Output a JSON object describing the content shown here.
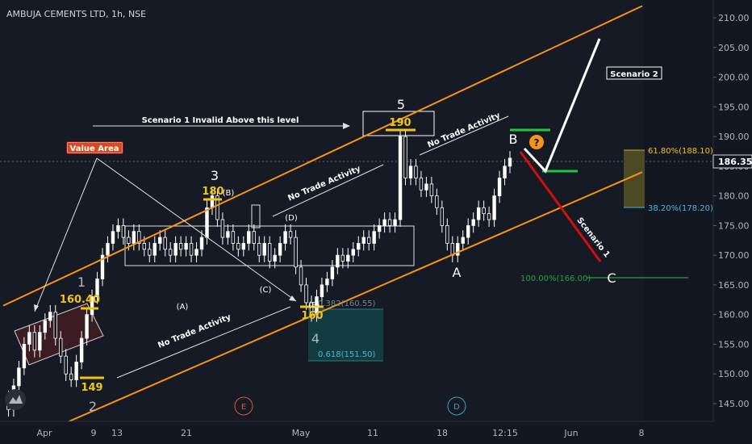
{
  "window": {
    "title": "AMBUJA CEMENTS LTD, 1h, NSE"
  },
  "colors": {
    "background": "#131722",
    "channel": "#f7931a",
    "candle": "#ffffff",
    "fib_label": "#f0c419",
    "fib_lower_label": "#4db6d3",
    "green_level": "#22c53e",
    "red_arrow": "#d10f0f",
    "white_arrow": "#ffffff",
    "value_area_fill": "#3a1c22",
    "teal_box_fill": "#123c3f"
  },
  "price_axis": {
    "ticks": [
      "210.00",
      "205.00",
      "200.00",
      "195.00",
      "190.00",
      "185.00",
      "180.00",
      "175.00",
      "170.00",
      "165.00",
      "160.00",
      "155.00",
      "150.00",
      "145.00"
    ],
    "current_price": "186.35"
  },
  "time_axis": {
    "ticks": [
      "Apr",
      "9",
      "13",
      "21",
      "May",
      "11",
      "18",
      "12:15",
      "Jun",
      "8"
    ]
  },
  "annotations": {
    "value_area": "Value Area",
    "scenario1_invalid": "Scenario 1 Invalid Above this level",
    "scenario2": "Scenario 2",
    "scenario1": "Scenario 1",
    "no_trade_1": "No Trade Activity",
    "no_trade_2": "No Trade Activity",
    "no_trade_3": "No Trade Activity",
    "question_mark": "?",
    "wave_1": "1",
    "wave_2": "2",
    "wave_3": "3",
    "wave_4": "4",
    "wave_5": "5",
    "wave_A": "A",
    "wave_B": "B",
    "wave_C": "C",
    "sub_A": "(A)",
    "sub_B": "(B)",
    "sub_C": "(C)",
    "sub_D": "(D)",
    "sub_E": "(E)",
    "circle_E": "E",
    "circle_D": "D",
    "price_1": "160.40",
    "price_2": "149",
    "price_3": "180",
    "price_4": "160",
    "price_5": "190",
    "fib_618": "61.80%(188.10)",
    "fib_382_upper": "38.20%(178.20)",
    "fib_100": "100.00%(166.00)",
    "fib_0382": "0.382(160.55)",
    "fib_0618": "0.618(151.50)"
  },
  "chart_data": {
    "type": "candlestick",
    "title": "AMBUJA CEMENTS LTD, 1h, NSE",
    "ylim": [
      142,
      213
    ],
    "y_ticks": [
      145,
      150,
      155,
      160,
      165,
      170,
      175,
      180,
      185,
      190,
      195,
      200,
      205,
      210
    ],
    "x_ticks": [
      "Apr",
      "9",
      "13",
      "21",
      "May",
      "11",
      "18",
      "12:15",
      "Jun",
      "8"
    ],
    "last_price": 186.35,
    "price_path": [
      [
        0,
        146
      ],
      [
        3,
        144
      ],
      [
        5,
        148
      ],
      [
        7,
        151
      ],
      [
        8,
        155
      ],
      [
        9,
        157
      ],
      [
        10,
        154
      ],
      [
        11,
        157
      ],
      [
        12,
        159
      ],
      [
        13,
        160.4
      ],
      [
        14,
        156
      ],
      [
        15,
        153
      ],
      [
        16,
        150
      ],
      [
        17,
        149
      ],
      [
        18,
        152
      ],
      [
        19,
        156
      ],
      [
        20,
        160
      ],
      [
        21,
        163
      ],
      [
        22,
        166
      ],
      [
        23,
        170
      ],
      [
        24,
        172
      ],
      [
        25,
        174
      ],
      [
        26,
        175
      ],
      [
        27,
        173
      ],
      [
        28,
        172
      ],
      [
        29,
        174
      ],
      [
        30,
        172
      ],
      [
        31,
        171
      ],
      [
        32,
        170
      ],
      [
        33,
        172
      ],
      [
        34,
        173
      ],
      [
        35,
        171
      ],
      [
        36,
        170
      ],
      [
        37,
        172
      ],
      [
        38,
        171
      ],
      [
        39,
        172
      ],
      [
        40,
        170
      ],
      [
        41,
        171
      ],
      [
        42,
        173
      ],
      [
        43,
        178
      ],
      [
        44,
        180
      ],
      [
        45,
        176
      ],
      [
        46,
        173
      ],
      [
        47,
        174
      ],
      [
        48,
        172
      ],
      [
        49,
        171
      ],
      [
        50,
        172
      ],
      [
        51,
        174
      ],
      [
        52,
        172
      ],
      [
        53,
        170
      ],
      [
        54,
        172
      ],
      [
        55,
        169
      ],
      [
        56,
        170
      ],
      [
        57,
        172
      ],
      [
        58,
        174
      ],
      [
        59,
        173
      ],
      [
        60,
        168
      ],
      [
        61,
        165
      ],
      [
        62,
        162
      ],
      [
        63,
        160
      ],
      [
        64,
        163
      ],
      [
        65,
        165
      ],
      [
        66,
        166
      ],
      [
        67,
        168
      ],
      [
        68,
        170
      ],
      [
        69,
        169
      ],
      [
        70,
        170
      ],
      [
        71,
        171
      ],
      [
        72,
        172
      ],
      [
        73,
        173
      ],
      [
        74,
        172
      ],
      [
        75,
        174
      ],
      [
        76,
        175
      ],
      [
        77,
        176
      ],
      [
        78,
        175
      ],
      [
        79,
        176
      ],
      [
        80,
        190
      ],
      [
        81,
        183
      ],
      [
        82,
        185
      ],
      [
        83,
        183
      ],
      [
        84,
        181
      ],
      [
        85,
        182
      ],
      [
        86,
        180
      ],
      [
        87,
        178
      ],
      [
        88,
        175
      ],
      [
        89,
        172
      ],
      [
        90,
        170
      ],
      [
        91,
        172
      ],
      [
        92,
        173
      ],
      [
        93,
        175
      ],
      [
        94,
        176
      ],
      [
        95,
        178
      ],
      [
        96,
        177
      ],
      [
        97,
        176
      ],
      [
        98,
        180
      ],
      [
        99,
        183
      ],
      [
        100,
        185
      ],
      [
        101,
        186.35
      ]
    ],
    "channel": {
      "upper": [
        [
          0,
          161.5
        ],
        [
          136,
          212
        ]
      ],
      "lower": [
        [
          14,
          142
        ],
        [
          136,
          184
        ]
      ]
    },
    "fib_levels": [
      {
        "label": "61.80%(188.10)",
        "value": 188.1
      },
      {
        "label": "38.20%(178.20)",
        "value": 178.2
      },
      {
        "label": "100.00%(166.00)",
        "value": 166.0
      },
      {
        "label": "0.382(160.55)",
        "value": 160.55
      },
      {
        "label": "0.618(151.50)",
        "value": 151.5
      }
    ],
    "wave_points": [
      {
        "label": "1",
        "price": 160.4
      },
      {
        "label": "2",
        "price": 149
      },
      {
        "label": "3",
        "price": 180
      },
      {
        "label": "4",
        "price": 160
      },
      {
        "label": "5",
        "price": 190
      }
    ]
  }
}
